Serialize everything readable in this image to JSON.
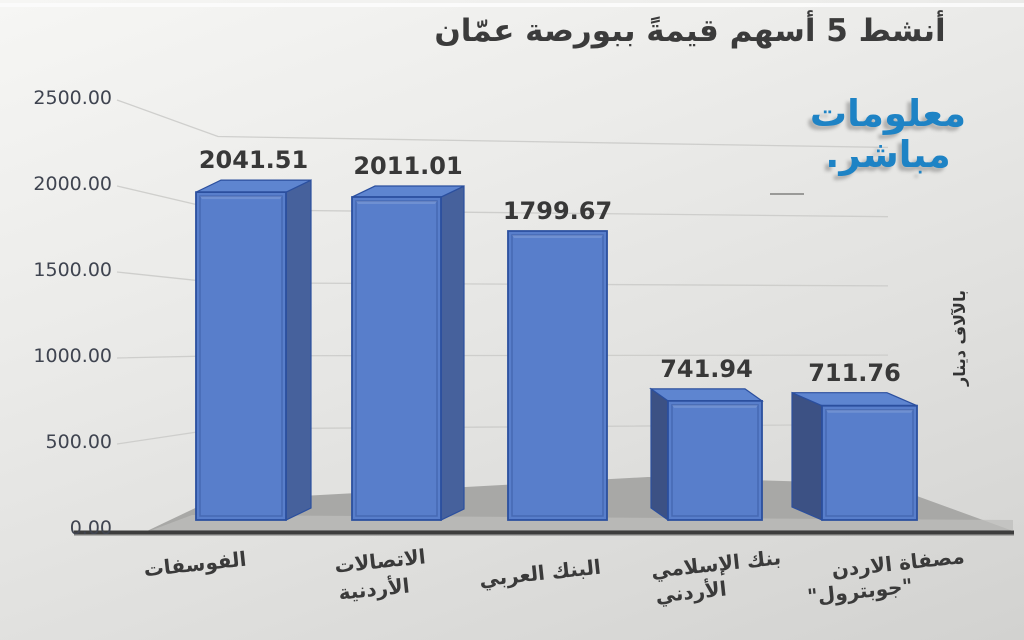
{
  "watermark": {
    "line1": "معلومات",
    "line2": "مباشر.",
    "color": "#1e83c5"
  },
  "chart_data": {
    "type": "bar",
    "style": "3d-column",
    "title": "أنشط 5 أسهم قيمةً ببورصة عمّان",
    "categories": [
      "الفوسفات",
      "الاتصالات الأردنية",
      "البنك العربي",
      "بنك الإسلامي الأردني",
      "مصفاة الاردن \"جوبترول\""
    ],
    "category_lines": [
      [
        "الفوسفات"
      ],
      [
        "الاتصالات",
        "الأردنية"
      ],
      [
        "البنك العربي"
      ],
      [
        "بنك الإسلامي",
        "الأردني"
      ],
      [
        "مصفاة الاردن",
        "\"جوبترول\""
      ]
    ],
    "values": [
      2041.51,
      2011.01,
      1799.67,
      741.94,
      711.76
    ],
    "value_labels": [
      "2041.51",
      "2011.01",
      "1799.67",
      "741.94",
      "711.76"
    ],
    "ylabel": "بالآلاف دينار",
    "yticks": [
      "2500.00",
      "2000.00",
      "1500.00",
      "1000.00",
      "500.00",
      "0.00"
    ],
    "ylim": [
      0,
      2500
    ],
    "grid": "horizontal",
    "legend": "none",
    "colors": {
      "bar_front": "#587ecb",
      "bar_top": "#5e85d0",
      "bar_side_right": "#46619c",
      "bar_side_left": "#3c5184",
      "bar_edge": "#2b4f9e",
      "floor": "#a8a8a6",
      "axis_line": "#3d3d3d",
      "gridline": "#cbcbc9",
      "text": "#3a3a3a"
    }
  }
}
